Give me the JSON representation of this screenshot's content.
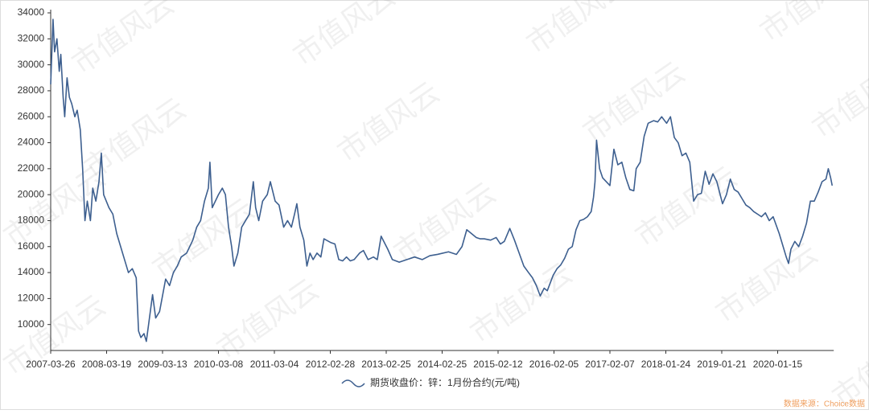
{
  "chart_data": {
    "type": "line",
    "watermark": "市值风云",
    "source": "数据来源：Choice数据",
    "grid": false,
    "legend_position": "bottom",
    "xlim": [
      "2007-03-26",
      "2021-01-09"
    ],
    "xticks": [
      "2007-03-26",
      "2008-03-19",
      "2009-03-13",
      "2010-03-08",
      "2011-03-04",
      "2012-02-28",
      "2013-02-25",
      "2014-02-25",
      "2015-02-12",
      "2016-02-05",
      "2017-02-07",
      "2018-01-24",
      "2019-01-21",
      "2020-01-15"
    ],
    "ylim": [
      8000,
      34000
    ],
    "yticks": [
      10000,
      12000,
      14000,
      16000,
      18000,
      20000,
      22000,
      24000,
      26000,
      28000,
      30000,
      32000,
      34000
    ],
    "x": [
      "2007-03-26",
      "2007-04-10",
      "2007-04-20",
      "2007-05-05",
      "2007-05-20",
      "2007-05-30",
      "2007-06-14",
      "2007-06-24",
      "2007-07-09",
      "2007-07-24",
      "2007-08-08",
      "2007-08-28",
      "2007-09-12",
      "2007-10-02",
      "2007-10-17",
      "2007-11-01",
      "2007-11-16",
      "2007-12-06",
      "2007-12-21",
      "2008-01-10",
      "2008-01-30",
      "2008-02-14",
      "2008-02-29",
      "2008-04-03",
      "2008-04-28",
      "2008-05-23",
      "2008-06-17",
      "2008-07-12",
      "2008-08-06",
      "2008-08-31",
      "2008-09-25",
      "2008-10-10",
      "2008-10-25",
      "2008-11-14",
      "2008-11-29",
      "2008-12-19",
      "2009-01-08",
      "2009-01-28",
      "2009-02-22",
      "2009-04-02",
      "2009-04-27",
      "2009-05-22",
      "2009-06-16",
      "2009-07-11",
      "2009-08-15",
      "2009-09-24",
      "2009-10-19",
      "2009-11-13",
      "2009-12-08",
      "2010-01-02",
      "2010-01-12",
      "2010-01-27",
      "2010-03-08",
      "2010-04-02",
      "2010-04-22",
      "2010-05-12",
      "2010-06-01",
      "2010-06-16",
      "2010-07-11",
      "2010-08-05",
      "2010-08-30",
      "2010-09-24",
      "2010-10-19",
      "2010-11-03",
      "2010-11-23",
      "2010-12-18",
      "2011-01-17",
      "2011-02-06",
      "2011-03-09",
      "2011-04-03",
      "2011-05-03",
      "2011-05-28",
      "2011-06-22",
      "2011-07-12",
      "2011-07-27",
      "2011-08-16",
      "2011-09-10",
      "2011-09-30",
      "2011-10-20",
      "2011-11-09",
      "2011-12-04",
      "2011-12-29",
      "2012-01-18",
      "2012-03-04",
      "2012-03-29",
      "2012-04-23",
      "2012-05-18",
      "2012-06-12",
      "2012-07-07",
      "2012-08-01",
      "2012-09-05",
      "2012-09-30",
      "2012-10-30",
      "2012-12-04",
      "2012-12-29",
      "2013-01-23",
      "2013-03-07",
      "2013-04-06",
      "2013-05-21",
      "2013-07-10",
      "2013-08-29",
      "2013-10-18",
      "2013-12-07",
      "2014-01-26",
      "2014-04-06",
      "2014-05-26",
      "2014-06-30",
      "2014-07-30",
      "2014-08-29",
      "2014-09-28",
      "2014-10-23",
      "2014-11-17",
      "2014-12-27",
      "2015-01-31",
      "2015-02-27",
      "2015-03-24",
      "2015-04-28",
      "2015-05-28",
      "2015-06-27",
      "2015-07-27",
      "2015-08-26",
      "2015-09-20",
      "2015-10-15",
      "2015-11-09",
      "2015-12-04",
      "2015-12-24",
      "2016-01-31",
      "2016-02-25",
      "2016-03-21",
      "2016-04-15",
      "2016-05-10",
      "2016-06-04",
      "2016-06-29",
      "2016-07-24",
      "2016-08-18",
      "2016-09-12",
      "2016-10-07",
      "2016-10-22",
      "2016-11-01",
      "2016-11-11",
      "2016-12-01",
      "2016-12-21",
      "2017-02-07",
      "2017-03-04",
      "2017-03-29",
      "2017-04-23",
      "2017-05-18",
      "2017-06-12",
      "2017-07-07",
      "2017-07-22",
      "2017-08-16",
      "2017-09-10",
      "2017-10-05",
      "2017-11-09",
      "2017-12-04",
      "2017-12-29",
      "2018-01-29",
      "2018-02-23",
      "2018-03-20",
      "2018-04-14",
      "2018-05-09",
      "2018-06-03",
      "2018-06-28",
      "2018-07-23",
      "2018-08-17",
      "2018-09-11",
      "2018-10-06",
      "2018-10-31",
      "2018-11-25",
      "2018-12-20",
      "2019-01-26",
      "2019-02-20",
      "2019-03-17",
      "2019-04-11",
      "2019-05-06",
      "2019-05-31",
      "2019-06-25",
      "2019-07-20",
      "2019-08-14",
      "2019-09-08",
      "2019-10-03",
      "2019-10-28",
      "2019-11-22",
      "2019-12-17",
      "2020-01-25",
      "2020-02-19",
      "2020-03-10",
      "2020-03-25",
      "2020-04-09",
      "2020-05-04",
      "2020-05-29",
      "2020-06-23",
      "2020-07-18",
      "2020-08-12",
      "2020-09-06",
      "2020-10-01",
      "2020-10-26",
      "2020-11-20",
      "2020-12-05",
      "2020-12-20",
      "2020-12-30"
    ],
    "series": [
      {
        "name": "期货收盘价：锌：1月份合约(元/吨)",
        "color": "#3d5f8f",
        "values": [
          28500,
          33500,
          31000,
          32000,
          29500,
          30800,
          27500,
          26000,
          29000,
          27500,
          27000,
          26000,
          26500,
          25000,
          22000,
          18000,
          19500,
          18000,
          20500,
          19500,
          21000,
          23200,
          20000,
          19000,
          18500,
          17000,
          16000,
          15000,
          14000,
          14300,
          13600,
          9500,
          9000,
          9300,
          8700,
          10500,
          12300,
          10500,
          11000,
          13500,
          13000,
          14000,
          14500,
          15200,
          15500,
          16500,
          17500,
          18000,
          19500,
          20500,
          22500,
          19000,
          20000,
          20500,
          20000,
          17500,
          16000,
          14500,
          15500,
          17500,
          18000,
          18500,
          21000,
          19000,
          18000,
          19500,
          20000,
          21000,
          19500,
          19200,
          17500,
          18000,
          17500,
          18500,
          19300,
          17500,
          16500,
          14500,
          15500,
          15000,
          15500,
          15200,
          16600,
          16300,
          16200,
          15000,
          14900,
          15200,
          14900,
          15000,
          15500,
          15700,
          15000,
          15200,
          15000,
          16800,
          15800,
          15000,
          14800,
          15000,
          15200,
          15000,
          15300,
          15400,
          15600,
          15400,
          16000,
          17300,
          17000,
          16700,
          16600,
          16600,
          16500,
          16700,
          16200,
          16400,
          17400,
          16500,
          15500,
          14500,
          14000,
          13600,
          13000,
          12200,
          12800,
          12600,
          13800,
          14300,
          14600,
          15100,
          15800,
          16000,
          17300,
          18000,
          18100,
          18300,
          18700,
          19800,
          21000,
          24200,
          22000,
          21300,
          20700,
          23500,
          22300,
          22500,
          21300,
          20400,
          20300,
          22000,
          22500,
          24500,
          25500,
          25700,
          25600,
          26000,
          25500,
          26000,
          24400,
          24000,
          23000,
          23200,
          22500,
          19500,
          20000,
          20100,
          21800,
          20800,
          21600,
          21000,
          19300,
          20000,
          21200,
          20400,
          20200,
          19700,
          19200,
          19000,
          18700,
          18500,
          18300,
          18600,
          18000,
          18300,
          17000,
          16000,
          15200,
          14700,
          15800,
          16400,
          16000,
          16800,
          17800,
          19500,
          19500,
          20200,
          21000,
          21200,
          22000,
          21300,
          20700
        ]
      }
    ]
  }
}
